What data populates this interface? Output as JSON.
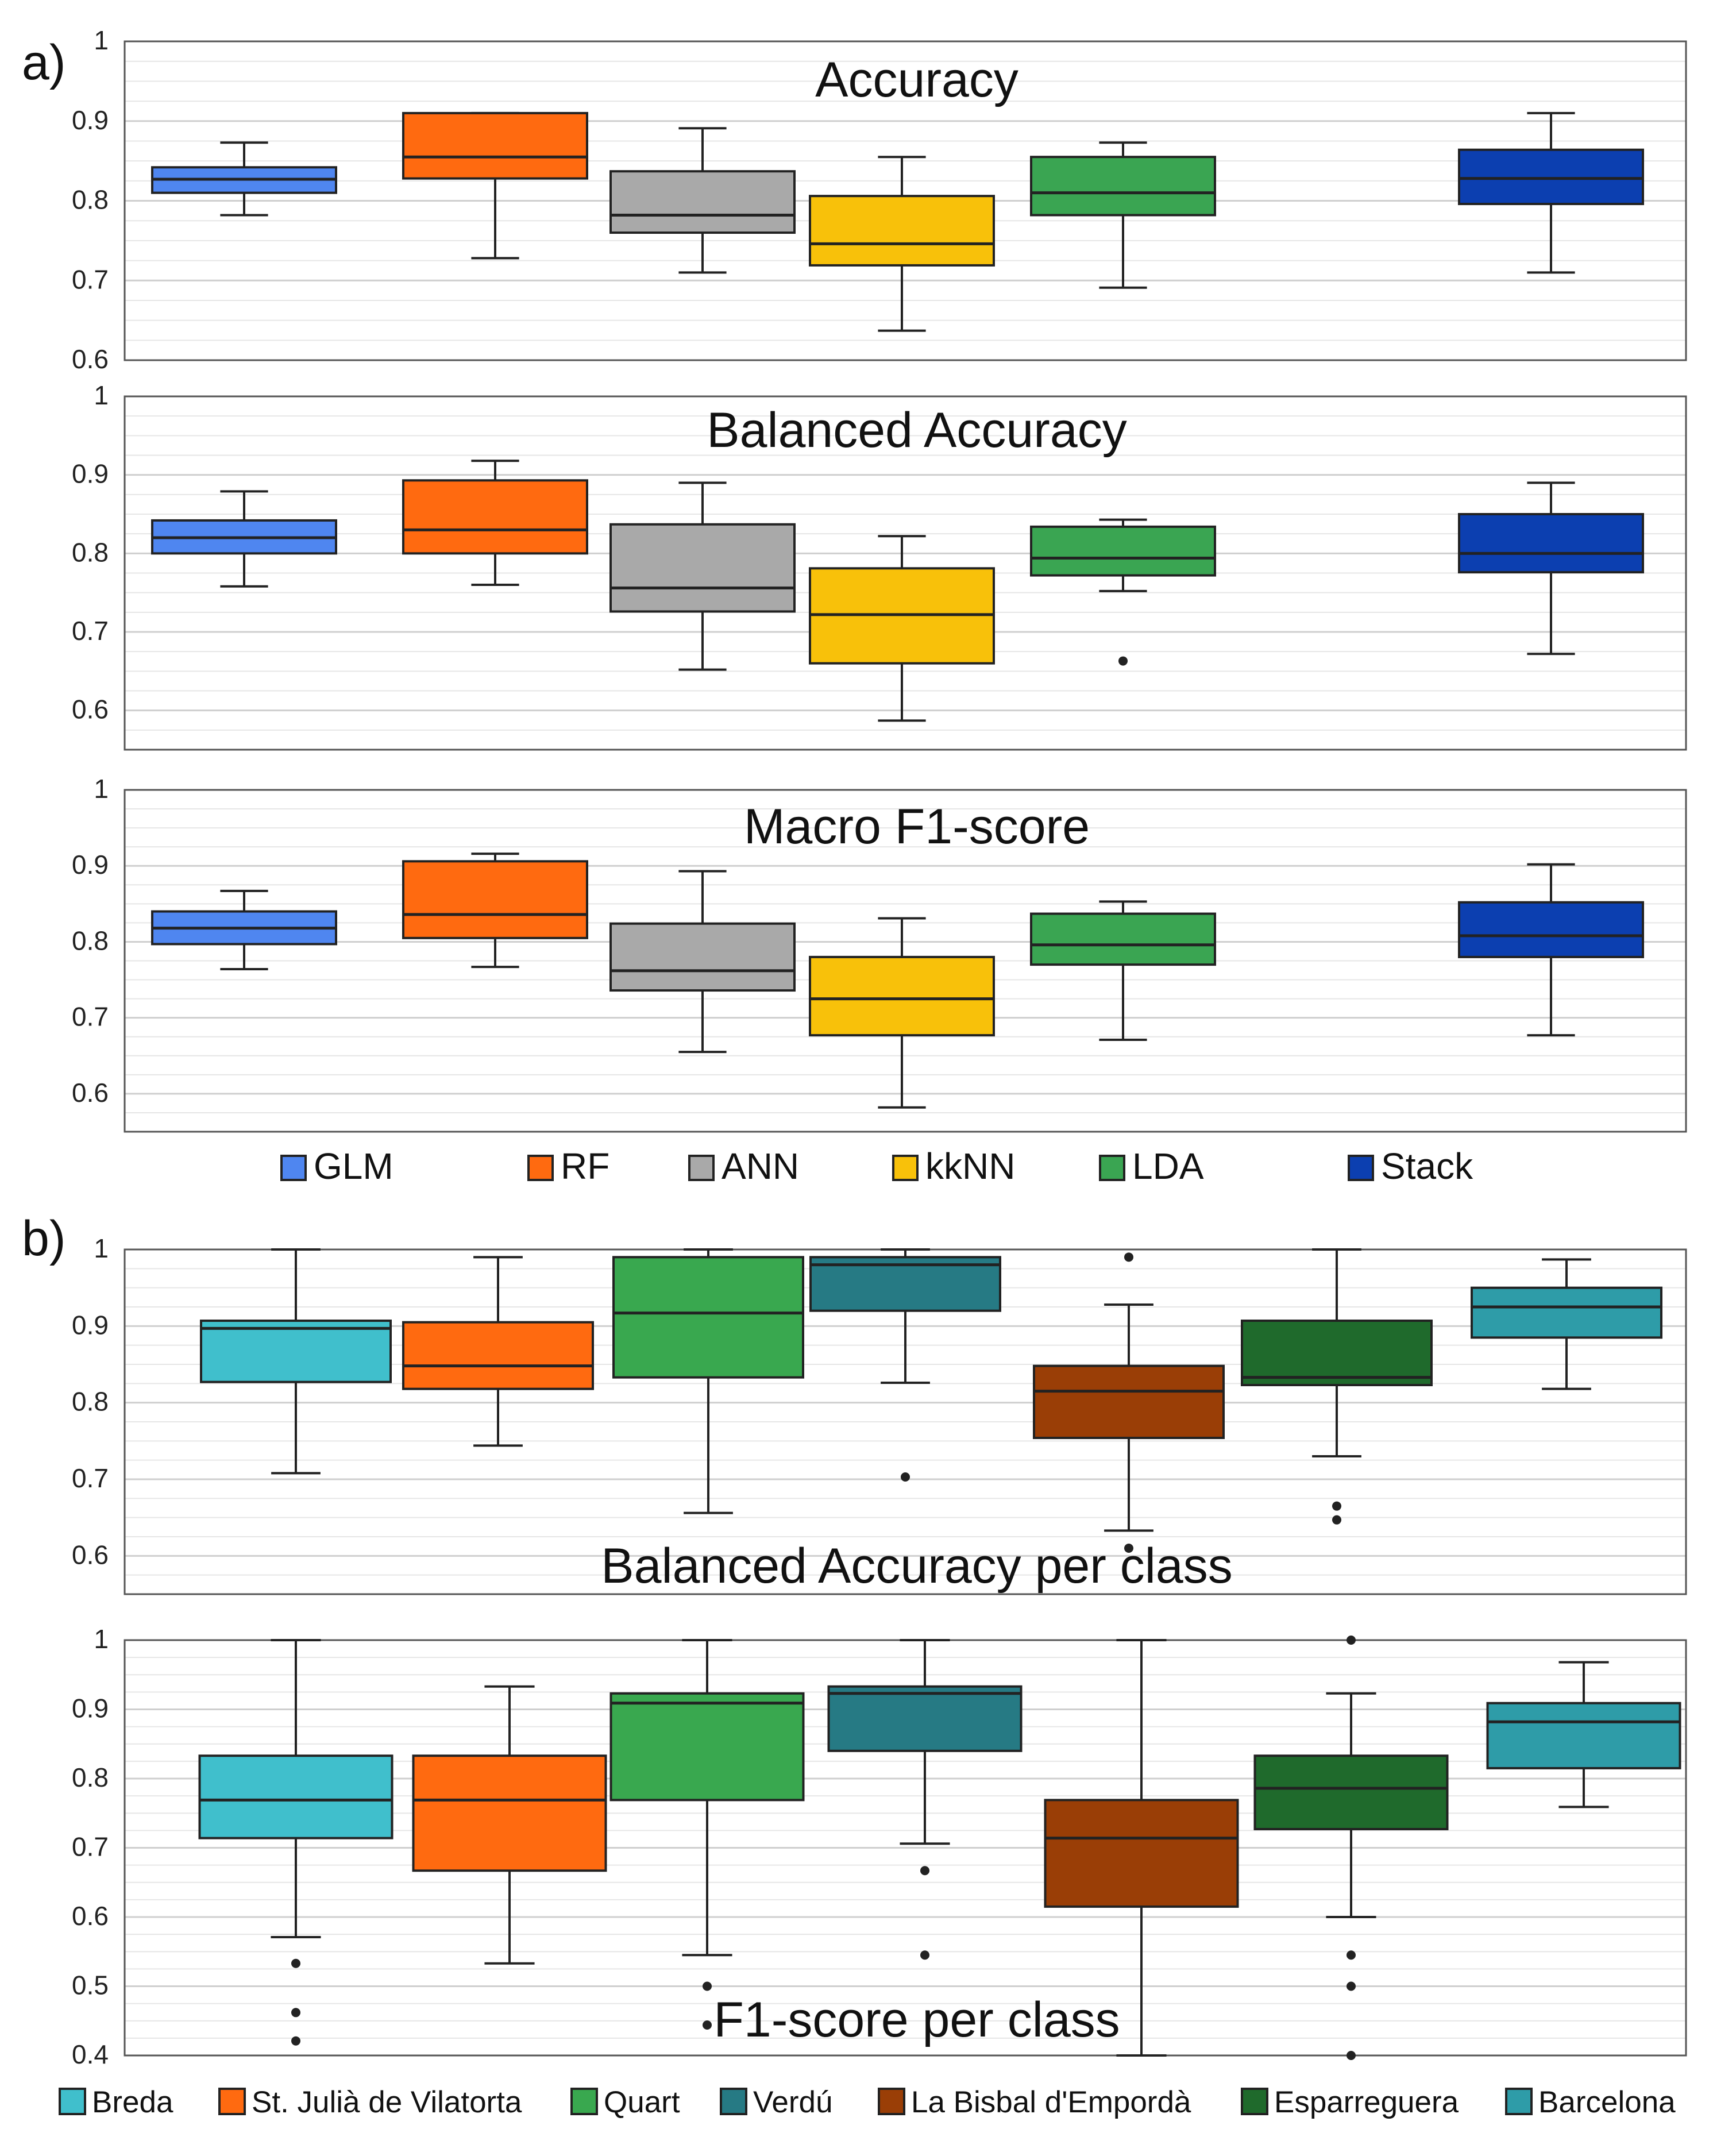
{
  "panel_labels": [
    "a)",
    "b)"
  ],
  "colors": {
    "GLM": "#4f86f0",
    "RF": "#ff6a10",
    "ANN": "#a9a9a9",
    "kkNN": "#f8c10a",
    "LDA": "#3aa552",
    "Stack": "#0c3fb0",
    "Breda": "#40bfcc",
    "St. Julià de Vilatorta": "#ff6a10",
    "Quart": "#39a84f",
    "Verdú": "#267a84",
    "La Bisbal d'Empordà": "#9a3e06",
    "Esparreguera": "#1f6a2c",
    "Barcelona": "#2e9ca8"
  },
  "chart_data": [
    {
      "type": "box",
      "title": "Accuracy",
      "ylim": [
        0.6,
        1
      ],
      "yticks": [
        "0.6",
        "0.7",
        "0.8",
        "0.9",
        "1"
      ],
      "categories": [
        "GLM",
        "RF",
        "ANN",
        "kkNN",
        "LDA",
        "Stack"
      ],
      "boxes": [
        {
          "name": "GLM",
          "whislo": 0.782,
          "q1": 0.81,
          "med": 0.827,
          "q3": 0.842,
          "whishi": 0.873,
          "fliers": []
        },
        {
          "name": "RF",
          "whislo": 0.728,
          "q1": 0.828,
          "med": 0.855,
          "q3": 0.91,
          "whishi": 0.91,
          "fliers": []
        },
        {
          "name": "ANN",
          "whislo": 0.71,
          "q1": 0.76,
          "med": 0.782,
          "q3": 0.837,
          "whishi": 0.891,
          "fliers": []
        },
        {
          "name": "kkNN",
          "whislo": 0.637,
          "q1": 0.719,
          "med": 0.746,
          "q3": 0.806,
          "whishi": 0.855,
          "fliers": []
        },
        {
          "name": "LDA",
          "whislo": 0.691,
          "q1": 0.782,
          "med": 0.81,
          "q3": 0.855,
          "whishi": 0.873,
          "fliers": []
        },
        {
          "name": "Stack",
          "whislo": 0.71,
          "q1": 0.796,
          "med": 0.828,
          "q3": 0.864,
          "whishi": 0.91,
          "fliers": []
        }
      ]
    },
    {
      "type": "box",
      "title": "Balanced Accuracy",
      "ylim": [
        0.55,
        1
      ],
      "yticks": [
        "0.6",
        "0.7",
        "0.8",
        "0.9",
        "1"
      ],
      "categories": [
        "GLM",
        "RF",
        "ANN",
        "kkNN",
        "LDA",
        "Stack"
      ],
      "boxes": [
        {
          "name": "GLM",
          "whislo": 0.758,
          "q1": 0.8,
          "med": 0.82,
          "q3": 0.842,
          "whishi": 0.879,
          "fliers": []
        },
        {
          "name": "RF",
          "whislo": 0.76,
          "q1": 0.8,
          "med": 0.83,
          "q3": 0.893,
          "whishi": 0.918,
          "fliers": []
        },
        {
          "name": "ANN",
          "whislo": 0.652,
          "q1": 0.726,
          "med": 0.756,
          "q3": 0.837,
          "whishi": 0.89,
          "fliers": []
        },
        {
          "name": "kkNN",
          "whislo": 0.587,
          "q1": 0.66,
          "med": 0.722,
          "q3": 0.781,
          "whishi": 0.822,
          "fliers": []
        },
        {
          "name": "LDA",
          "whislo": 0.752,
          "q1": 0.772,
          "med": 0.794,
          "q3": 0.834,
          "whishi": 0.843,
          "fliers": [
            0.663
          ]
        },
        {
          "name": "Stack",
          "whislo": 0.672,
          "q1": 0.776,
          "med": 0.8,
          "q3": 0.85,
          "whishi": 0.89,
          "fliers": []
        }
      ]
    },
    {
      "type": "box",
      "title": "Macro F1-score",
      "ylim": [
        0.55,
        1
      ],
      "yticks": [
        "0.6",
        "0.7",
        "0.8",
        "0.9",
        "1"
      ],
      "categories": [
        "GLM",
        "RF",
        "ANN",
        "kkNN",
        "LDA",
        "Stack"
      ],
      "boxes": [
        {
          "name": "GLM",
          "whislo": 0.764,
          "q1": 0.797,
          "med": 0.818,
          "q3": 0.84,
          "whishi": 0.867,
          "fliers": []
        },
        {
          "name": "RF",
          "whislo": 0.767,
          "q1": 0.805,
          "med": 0.836,
          "q3": 0.906,
          "whishi": 0.916,
          "fliers": []
        },
        {
          "name": "ANN",
          "whislo": 0.655,
          "q1": 0.736,
          "med": 0.762,
          "q3": 0.824,
          "whishi": 0.893,
          "fliers": []
        },
        {
          "name": "kkNN",
          "whislo": 0.582,
          "q1": 0.677,
          "med": 0.725,
          "q3": 0.78,
          "whishi": 0.831,
          "fliers": []
        },
        {
          "name": "LDA",
          "whislo": 0.671,
          "q1": 0.77,
          "med": 0.796,
          "q3": 0.837,
          "whishi": 0.853,
          "fliers": []
        },
        {
          "name": "Stack",
          "whislo": 0.677,
          "q1": 0.78,
          "med": 0.808,
          "q3": 0.852,
          "whishi": 0.902,
          "fliers": []
        }
      ]
    },
    {
      "type": "box",
      "title": "Balanced Accuracy per class",
      "ylim": [
        0.55,
        1
      ],
      "yticks": [
        "0.6",
        "0.7",
        "0.8",
        "0.9",
        "1"
      ],
      "categories": [
        "Breda",
        "St. Julià de Vilatorta",
        "Quart",
        "Verdú",
        "La Bisbal d'Empordà",
        "Esparreguera",
        "Barcelona"
      ],
      "boxes": [
        {
          "name": "Breda",
          "whislo": 0.708,
          "q1": 0.827,
          "med": 0.897,
          "q3": 0.907,
          "whishi": 1.0,
          "fliers": []
        },
        {
          "name": "St. Julià de Vilatorta",
          "whislo": 0.744,
          "q1": 0.818,
          "med": 0.848,
          "q3": 0.905,
          "whishi": 0.99,
          "fliers": []
        },
        {
          "name": "Quart",
          "whislo": 0.656,
          "q1": 0.833,
          "med": 0.917,
          "q3": 0.99,
          "whishi": 1.0,
          "fliers": []
        },
        {
          "name": "Verdú",
          "whislo": 0.826,
          "q1": 0.92,
          "med": 0.98,
          "q3": 0.99,
          "whishi": 1.0,
          "fliers": [
            0.703
          ]
        },
        {
          "name": "La Bisbal d'Empordà",
          "whislo": 0.633,
          "q1": 0.754,
          "med": 0.815,
          "q3": 0.848,
          "whishi": 0.928,
          "fliers": [
            0.99,
            0.61
          ]
        },
        {
          "name": "Esparreguera",
          "whislo": 0.73,
          "q1": 0.823,
          "med": 0.833,
          "q3": 0.907,
          "whishi": 1.0,
          "fliers": [
            0.665,
            0.647
          ]
        },
        {
          "name": "Barcelona",
          "whislo": 0.818,
          "q1": 0.885,
          "med": 0.925,
          "q3": 0.95,
          "whishi": 0.987,
          "fliers": []
        }
      ]
    },
    {
      "type": "box",
      "title": "F1-score per class",
      "ylim": [
        0.4,
        1
      ],
      "yticks": [
        "0.4",
        "0.5",
        "0.6",
        "0.7",
        "0.8",
        "0.9",
        "1"
      ],
      "categories": [
        "Breda",
        "St. Julià de Vilatorta",
        "Quart",
        "Verdú",
        "La Bisbal d'Empordà",
        "Esparreguera",
        "Barcelona"
      ],
      "boxes": [
        {
          "name": "Breda",
          "whislo": 0.571,
          "q1": 0.714,
          "med": 0.769,
          "q3": 0.833,
          "whishi": 1.0,
          "fliers": [
            0.533,
            0.462,
            0.421
          ]
        },
        {
          "name": "St. Julià de Vilatorta",
          "whislo": 0.533,
          "q1": 0.667,
          "med": 0.769,
          "q3": 0.833,
          "whishi": 0.933,
          "fliers": []
        },
        {
          "name": "Quart",
          "whislo": 0.545,
          "q1": 0.769,
          "med": 0.909,
          "q3": 0.923,
          "whishi": 1.0,
          "fliers": [
            0.5,
            0.444
          ]
        },
        {
          "name": "Verdú",
          "whislo": 0.706,
          "q1": 0.84,
          "med": 0.923,
          "q3": 0.933,
          "whishi": 1.0,
          "fliers": [
            0.667,
            0.545
          ]
        },
        {
          "name": "La Bisbal d'Empordà",
          "whislo": 0.4,
          "q1": 0.615,
          "med": 0.714,
          "q3": 0.769,
          "whishi": 1.0,
          "fliers": []
        },
        {
          "name": "Esparreguera",
          "whislo": 0.6,
          "q1": 0.727,
          "med": 0.786,
          "q3": 0.833,
          "whishi": 0.923,
          "fliers": [
            1.0,
            0.545,
            0.5,
            0.4
          ]
        },
        {
          "name": "Barcelona",
          "whislo": 0.759,
          "q1": 0.815,
          "med": 0.882,
          "q3": 0.909,
          "whishi": 0.968,
          "fliers": []
        }
      ]
    }
  ],
  "legend_a": [
    "GLM",
    "RF",
    "ANN",
    "kkNN",
    "LDA",
    "Stack"
  ],
  "legend_b": [
    "Breda",
    "St. Julià de Vilatorta",
    "Quart",
    "Verdú",
    "La Bisbal d'Empordà",
    "Esparreguera",
    "Barcelona"
  ]
}
